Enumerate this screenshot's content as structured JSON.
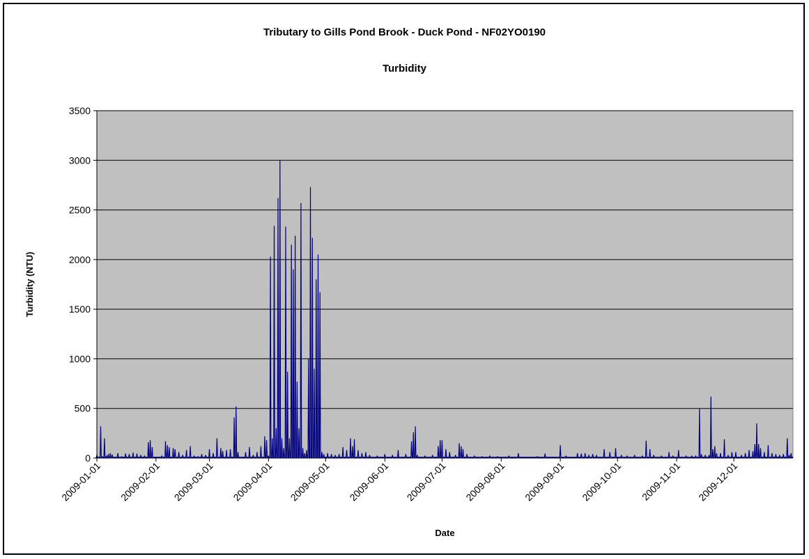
{
  "chart_data": {
    "type": "line",
    "title": "Tributary to Gills Pond Brook - Duck Pond - NF02YO0190",
    "subtitle": "Turbidity",
    "xlabel": "Date",
    "ylabel": "Turbidity (NTU)",
    "ylim": [
      0,
      3500
    ],
    "y_ticks": [
      "0",
      "500",
      "1000",
      "1500",
      "2000",
      "2500",
      "3000",
      "3500"
    ],
    "x_ticks": [
      "2009-01-01",
      "2009-02-01",
      "2009-03-01",
      "2009-04-01",
      "2009-05-01",
      "2009-06-01",
      "2009-07-01",
      "2009-08-01",
      "2009-09-01",
      "2009-10-01",
      "2009-11-01",
      "2009-12-01"
    ],
    "grid": "horizontal",
    "legend": "none",
    "colors": {
      "plot_bg": "#c0c0c0",
      "series": "#000080",
      "grid": "#000000"
    },
    "series": [
      {
        "points": [
          [
            "2009-01-01",
            30
          ],
          [
            "2009-01-02",
            10
          ],
          [
            "2009-01-03",
            320
          ],
          [
            "2009-01-04",
            15
          ],
          [
            "2009-01-05",
            200
          ],
          [
            "2009-01-06",
            20
          ],
          [
            "2009-01-07",
            40
          ],
          [
            "2009-01-08",
            50
          ],
          [
            "2009-01-09",
            35
          ],
          [
            "2009-01-10",
            10
          ],
          [
            "2009-01-12",
            50
          ],
          [
            "2009-01-14",
            15
          ],
          [
            "2009-01-16",
            45
          ],
          [
            "2009-01-18",
            40
          ],
          [
            "2009-01-20",
            55
          ],
          [
            "2009-01-22",
            45
          ],
          [
            "2009-01-24",
            30
          ],
          [
            "2009-01-26",
            20
          ],
          [
            "2009-01-28",
            160
          ],
          [
            "2009-01-29",
            180
          ],
          [
            "2009-01-30",
            110
          ],
          [
            "2009-02-01",
            10
          ],
          [
            "2009-02-04",
            20
          ],
          [
            "2009-02-06",
            170
          ],
          [
            "2009-02-07",
            130
          ],
          [
            "2009-02-08",
            110
          ],
          [
            "2009-02-10",
            100
          ],
          [
            "2009-02-11",
            90
          ],
          [
            "2009-02-13",
            60
          ],
          [
            "2009-02-15",
            30
          ],
          [
            "2009-02-17",
            80
          ],
          [
            "2009-02-19",
            120
          ],
          [
            "2009-02-21",
            20
          ],
          [
            "2009-02-23",
            15
          ],
          [
            "2009-02-25",
            40
          ],
          [
            "2009-02-27",
            30
          ],
          [
            "2009-03-01",
            90
          ],
          [
            "2009-03-03",
            50
          ],
          [
            "2009-03-05",
            200
          ],
          [
            "2009-03-07",
            100
          ],
          [
            "2009-03-08",
            70
          ],
          [
            "2009-03-10",
            80
          ],
          [
            "2009-03-12",
            90
          ],
          [
            "2009-03-14",
            410
          ],
          [
            "2009-03-15",
            520
          ],
          [
            "2009-03-16",
            60
          ],
          [
            "2009-03-20",
            60
          ],
          [
            "2009-03-22",
            110
          ],
          [
            "2009-03-24",
            30
          ],
          [
            "2009-03-26",
            60
          ],
          [
            "2009-03-28",
            120
          ],
          [
            "2009-03-30",
            220
          ],
          [
            "2009-03-31",
            180
          ],
          [
            "2009-04-01",
            20
          ],
          [
            "2009-04-02",
            2030
          ],
          [
            "2009-04-03",
            200
          ],
          [
            "2009-04-04",
            2340
          ],
          [
            "2009-04-05",
            300
          ],
          [
            "2009-04-06",
            2620
          ],
          [
            "2009-04-07",
            3000
          ],
          [
            "2009-04-08",
            200
          ],
          [
            "2009-04-09",
            100
          ],
          [
            "2009-04-10",
            2330
          ],
          [
            "2009-04-11",
            870
          ],
          [
            "2009-04-12",
            200
          ],
          [
            "2009-04-13",
            2150
          ],
          [
            "2009-04-14",
            1900
          ],
          [
            "2009-04-15",
            2240
          ],
          [
            "2009-04-16",
            770
          ],
          [
            "2009-04-17",
            300
          ],
          [
            "2009-04-18",
            2570
          ],
          [
            "2009-04-19",
            100
          ],
          [
            "2009-04-20",
            50
          ],
          [
            "2009-04-21",
            80
          ],
          [
            "2009-04-22",
            1000
          ],
          [
            "2009-04-23",
            2730
          ],
          [
            "2009-04-24",
            2220
          ],
          [
            "2009-04-25",
            900
          ],
          [
            "2009-04-26",
            1800
          ],
          [
            "2009-04-27",
            2050
          ],
          [
            "2009-04-28",
            1670
          ],
          [
            "2009-04-29",
            60
          ],
          [
            "2009-04-30",
            40
          ],
          [
            "2009-05-02",
            50
          ],
          [
            "2009-05-04",
            40
          ],
          [
            "2009-05-06",
            30
          ],
          [
            "2009-05-08",
            40
          ],
          [
            "2009-05-10",
            110
          ],
          [
            "2009-05-12",
            80
          ],
          [
            "2009-05-14",
            200
          ],
          [
            "2009-05-15",
            120
          ],
          [
            "2009-05-16",
            190
          ],
          [
            "2009-05-18",
            80
          ],
          [
            "2009-05-20",
            50
          ],
          [
            "2009-05-22",
            60
          ],
          [
            "2009-05-24",
            30
          ],
          [
            "2009-05-28",
            20
          ],
          [
            "2009-06-01",
            40
          ],
          [
            "2009-06-05",
            30
          ],
          [
            "2009-06-08",
            80
          ],
          [
            "2009-06-12",
            40
          ],
          [
            "2009-06-15",
            170
          ],
          [
            "2009-06-16",
            260
          ],
          [
            "2009-06-17",
            320
          ],
          [
            "2009-06-18",
            30
          ],
          [
            "2009-06-22",
            20
          ],
          [
            "2009-06-26",
            30
          ],
          [
            "2009-06-29",
            120
          ],
          [
            "2009-06-30",
            180
          ],
          [
            "2009-07-01",
            180
          ],
          [
            "2009-07-03",
            90
          ],
          [
            "2009-07-05",
            60
          ],
          [
            "2009-07-08",
            30
          ],
          [
            "2009-07-10",
            150
          ],
          [
            "2009-07-11",
            120
          ],
          [
            "2009-07-12",
            90
          ],
          [
            "2009-07-14",
            40
          ],
          [
            "2009-07-18",
            20
          ],
          [
            "2009-07-22",
            15
          ],
          [
            "2009-07-26",
            20
          ],
          [
            "2009-07-30",
            15
          ],
          [
            "2009-08-05",
            20
          ],
          [
            "2009-08-10",
            50
          ],
          [
            "2009-08-14",
            10
          ],
          [
            "2009-08-20",
            15
          ],
          [
            "2009-08-24",
            45
          ],
          [
            "2009-08-28",
            10
          ],
          [
            "2009-09-01",
            130
          ],
          [
            "2009-09-04",
            20
          ],
          [
            "2009-09-10",
            50
          ],
          [
            "2009-09-12",
            45
          ],
          [
            "2009-09-14",
            50
          ],
          [
            "2009-09-16",
            30
          ],
          [
            "2009-09-18",
            40
          ],
          [
            "2009-09-20",
            25
          ],
          [
            "2009-09-24",
            90
          ],
          [
            "2009-09-27",
            60
          ],
          [
            "2009-09-30",
            100
          ],
          [
            "2009-10-03",
            30
          ],
          [
            "2009-10-06",
            20
          ],
          [
            "2009-10-10",
            30
          ],
          [
            "2009-10-14",
            20
          ],
          [
            "2009-10-16",
            175
          ],
          [
            "2009-10-18",
            90
          ],
          [
            "2009-10-20",
            30
          ],
          [
            "2009-10-24",
            20
          ],
          [
            "2009-10-28",
            60
          ],
          [
            "2009-10-30",
            20
          ],
          [
            "2009-11-02",
            80
          ],
          [
            "2009-11-06",
            20
          ],
          [
            "2009-11-09",
            20
          ],
          [
            "2009-11-11",
            20
          ],
          [
            "2009-11-13",
            500
          ],
          [
            "2009-11-14",
            40
          ],
          [
            "2009-11-16",
            30
          ],
          [
            "2009-11-18",
            30
          ],
          [
            "2009-11-19",
            620
          ],
          [
            "2009-11-20",
            90
          ],
          [
            "2009-11-21",
            120
          ],
          [
            "2009-11-22",
            50
          ],
          [
            "2009-11-24",
            50
          ],
          [
            "2009-11-26",
            190
          ],
          [
            "2009-11-28",
            30
          ],
          [
            "2009-11-30",
            60
          ],
          [
            "2009-12-02",
            60
          ],
          [
            "2009-12-05",
            30
          ],
          [
            "2009-12-07",
            50
          ],
          [
            "2009-12-09",
            80
          ],
          [
            "2009-12-11",
            70
          ],
          [
            "2009-12-12",
            140
          ],
          [
            "2009-12-13",
            350
          ],
          [
            "2009-12-14",
            140
          ],
          [
            "2009-12-15",
            100
          ],
          [
            "2009-12-17",
            60
          ],
          [
            "2009-12-19",
            130
          ],
          [
            "2009-12-21",
            50
          ],
          [
            "2009-12-23",
            40
          ],
          [
            "2009-12-25",
            30
          ],
          [
            "2009-12-27",
            40
          ],
          [
            "2009-12-29",
            200
          ],
          [
            "2009-12-30",
            30
          ],
          [
            "2009-12-31",
            50
          ]
        ]
      }
    ]
  }
}
